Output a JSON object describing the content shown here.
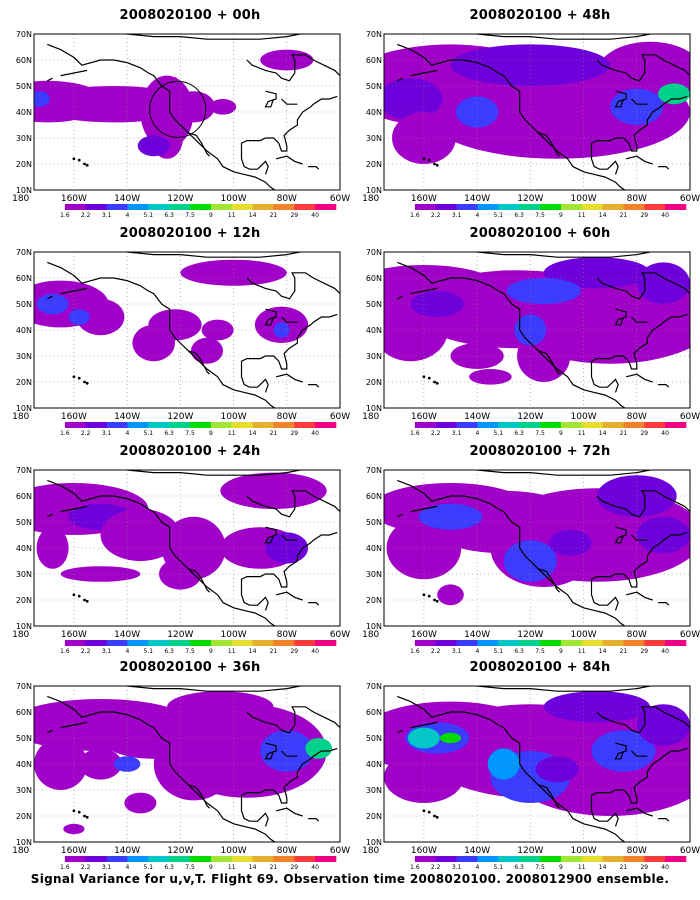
{
  "panels": [
    {
      "title": "2008020100 + 00h"
    },
    {
      "title": "2008020100 + 48h"
    },
    {
      "title": "2008020100 + 12h"
    },
    {
      "title": "2008020100 + 60h"
    },
    {
      "title": "2008020100 + 24h"
    },
    {
      "title": "2008020100 + 72h"
    },
    {
      "title": "2008020100 + 36h"
    },
    {
      "title": "2008020100 + 84h"
    }
  ],
  "lat_labels": [
    "70N",
    "60N",
    "50N",
    "40N",
    "30N",
    "20N",
    "10N"
  ],
  "lon_labels": [
    "180",
    "160W",
    "140W",
    "120W",
    "100W",
    "80W",
    "60W"
  ],
  "colorbar": {
    "labels": [
      "1.6",
      "2.2",
      "3.1",
      "4",
      "5.1",
      "6.3",
      "7.5",
      "9",
      "11",
      "14",
      "21",
      "29",
      "40"
    ],
    "colors": [
      "#a000c8",
      "#6e00dc",
      "#3c3cff",
      "#0096ff",
      "#00c8c8",
      "#00d28c",
      "#00dc00",
      "#a0e632",
      "#e6dc32",
      "#e6af2d",
      "#f08228",
      "#fa3c3c",
      "#f00082"
    ]
  },
  "footer": "Signal Variance for u,v,T. Flight 69. Observation time 2008020100. 2008012900 ensemble.",
  "observation_marker": {
    "label": "flight-69-region-circle"
  }
}
